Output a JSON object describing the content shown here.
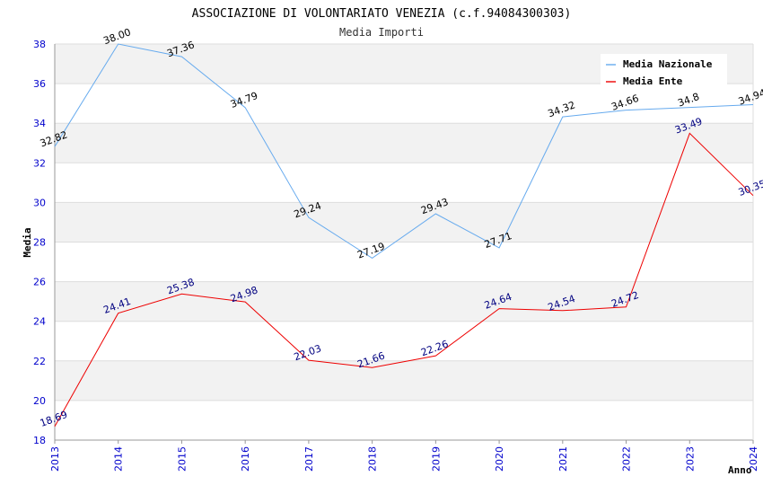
{
  "chart_data": {
    "type": "line",
    "title": "ASSOCIAZIONE DI VOLONTARIATO VENEZIA (c.f.94084300303)",
    "subtitle": "Media Importi",
    "xlabel": "Anno",
    "ylabel": "Media",
    "ylim": [
      18,
      38
    ],
    "yticks": [
      18,
      20,
      22,
      24,
      26,
      28,
      30,
      32,
      34,
      36,
      38
    ],
    "categories": [
      "2013",
      "2014",
      "2015",
      "2016",
      "2017",
      "2018",
      "2019",
      "2020",
      "2021",
      "2022",
      "2023",
      "2024"
    ],
    "grid": true,
    "legend_position": "top-right",
    "series": [
      {
        "name": "Media Nazionale",
        "color": "#66aaee",
        "label_color": "#000000",
        "values": [
          32.82,
          38.0,
          37.36,
          34.79,
          29.24,
          27.19,
          29.43,
          27.71,
          34.32,
          34.66,
          34.8,
          34.94
        ],
        "labels": [
          "32.82",
          "38.00",
          "37.36",
          "34.79",
          "29.24",
          "27.19",
          "29.43",
          "27.71",
          "34.32",
          "34.66",
          "34.8",
          "34.94"
        ]
      },
      {
        "name": "Media Ente",
        "color": "#ee0000",
        "label_color": "#000080",
        "values": [
          18.69,
          24.41,
          25.38,
          24.98,
          22.03,
          21.66,
          22.26,
          24.64,
          24.54,
          24.72,
          33.49,
          30.35
        ],
        "labels": [
          "18.69",
          "24.41",
          "25.38",
          "24.98",
          "22.03",
          "21.66",
          "22.26",
          "24.64",
          "24.54",
          "24.72",
          "33.49",
          "30.35"
        ]
      }
    ]
  }
}
